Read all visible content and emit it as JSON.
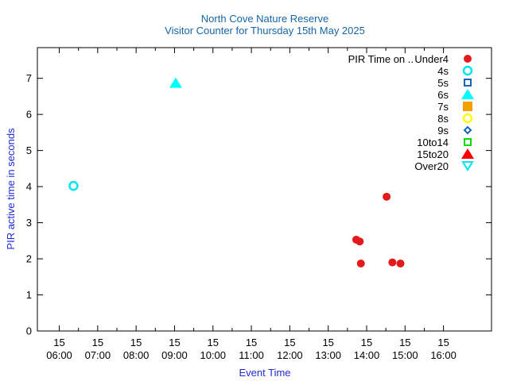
{
  "chart_data": {
    "type": "scatter",
    "title": "North Cove Nature Reserve",
    "subtitle": "Visitor Counter for Thursday 15th May 2025",
    "xlabel": "Event Time",
    "ylabel": "PIR active time in seconds",
    "xlim": [
      5.43,
      17.25
    ],
    "ylim": [
      0,
      7.85
    ],
    "x_ticks": [
      {
        "value": 6,
        "day": "15",
        "time": "06:00"
      },
      {
        "value": 7,
        "day": "15",
        "time": "07:00"
      },
      {
        "value": 8,
        "day": "15",
        "time": "08:00"
      },
      {
        "value": 9,
        "day": "15",
        "time": "09:00"
      },
      {
        "value": 10,
        "day": "15",
        "time": "10:00"
      },
      {
        "value": 11,
        "day": "15",
        "time": "11:00"
      },
      {
        "value": 12,
        "day": "15",
        "time": "12:00"
      },
      {
        "value": 13,
        "day": "15",
        "time": "13:00"
      },
      {
        "value": 14,
        "day": "15",
        "time": "14:00"
      },
      {
        "value": 15,
        "day": "15",
        "time": "15:00"
      },
      {
        "value": 16,
        "day": "15",
        "time": "16:00"
      }
    ],
    "y_ticks": [
      0,
      1,
      2,
      3,
      4,
      5,
      6,
      7
    ],
    "legend_title": "PIR Time on ..",
    "legend_position": "top-right",
    "series": [
      {
        "name": "Under4",
        "marker": "circle-filled",
        "color": "#e31a1c",
        "points": [
          {
            "x": 13.73,
            "y": 2.53
          },
          {
            "x": 13.82,
            "y": 2.48
          },
          {
            "x": 13.85,
            "y": 1.87
          },
          {
            "x": 14.52,
            "y": 3.72
          },
          {
            "x": 14.67,
            "y": 1.9
          },
          {
            "x": 14.88,
            "y": 1.87
          }
        ]
      },
      {
        "name": "4s",
        "marker": "circle-open",
        "color": "#00e5ee",
        "points": [
          {
            "x": 6.37,
            "y": 4.02
          }
        ]
      },
      {
        "name": "5s",
        "marker": "square-open",
        "color": "#1565c0",
        "points": []
      },
      {
        "name": "6s",
        "marker": "triangle-filled",
        "color": "#00ffff",
        "points": [
          {
            "x": 9.03,
            "y": 6.87
          }
        ]
      },
      {
        "name": "7s",
        "marker": "square-filled",
        "color": "#f0a000",
        "points": []
      },
      {
        "name": "8s",
        "marker": "circle-open",
        "color": "#ffff00",
        "points": []
      },
      {
        "name": "9s",
        "marker": "diamond-open",
        "color": "#1565c0",
        "points": []
      },
      {
        "name": "10to14",
        "marker": "square-open",
        "color": "#00dd00",
        "points": []
      },
      {
        "name": "15to20",
        "marker": "triangle-filled",
        "color": "#ff0000",
        "points": []
      },
      {
        "name": "Over20",
        "marker": "triangle-down-open",
        "color": "#00e5ee",
        "points": []
      }
    ]
  }
}
